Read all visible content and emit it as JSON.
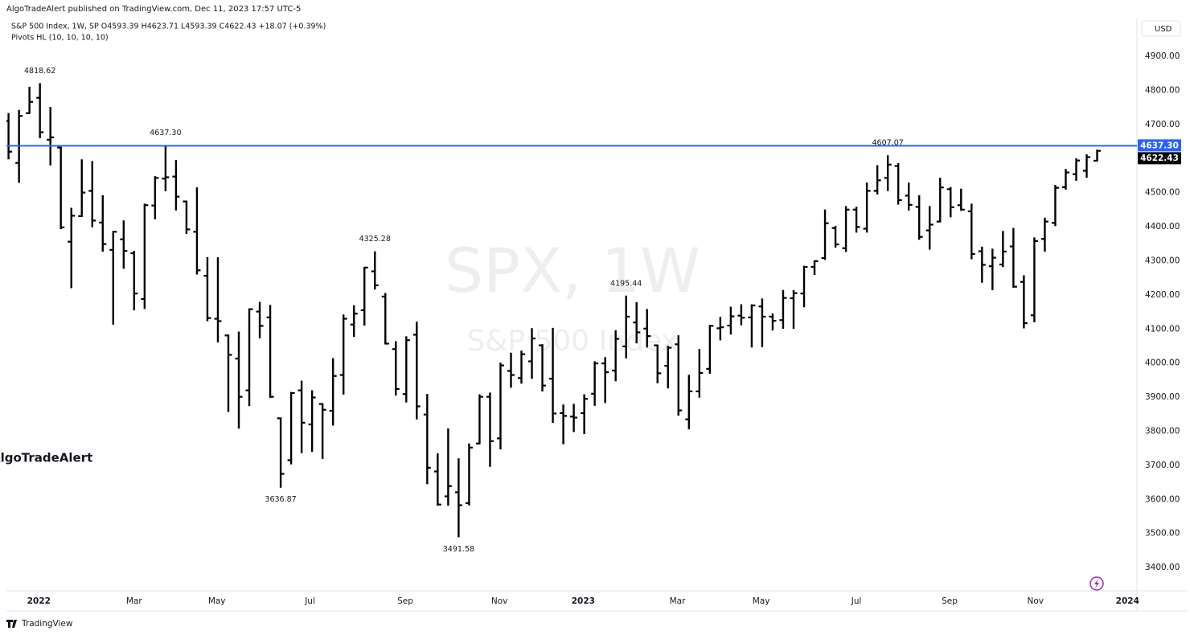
{
  "header": {
    "publisher": "AlgoTradeAlert published on TradingView.com, Dec 11, 2023 17:57 UTC-5",
    "legend": "S&P 500 Index, 1W, SP  O4593.39  H4623.71  L4593.39  C4622.43  +18.07 (+0.39%)",
    "indicator": "Pivots HL (10, 10, 10, 10)",
    "currency": "USD"
  },
  "watermark": {
    "symbol": "SPX, 1W",
    "name": "S&P 500 Index",
    "author": "AlgoTradeAlert"
  },
  "footer": "TradingView",
  "chart_data": {
    "type": "ohlc",
    "color": "#000000",
    "open": [
      4710,
      4587,
      4733,
      4778,
      4655,
      4632,
      4356,
      4431,
      4505,
      4412,
      4332,
      4363,
      4322,
      4188,
      4462,
      4541,
      4547,
      4474,
      4385,
      4256,
      4130,
      4081,
      4013,
      3920,
      4151,
      4134,
      3838,
      3715,
      3920,
      3820,
      3880,
      3860,
      3965,
      4113,
      4155,
      4269,
      4195,
      4041,
      3909,
      4083,
      3849,
      3682,
      3609,
      3621,
      3589,
      3764,
      3901,
      3779,
      3977,
      3956,
      4005,
      4052,
      3954,
      3853,
      3843,
      3853,
      3910,
      3999,
      3978,
      4049,
      4119,
      4101,
      4052,
      3992,
      4055,
      3835,
      3917,
      3983,
      4102,
      4110,
      4139,
      4134,
      4166,
      4136,
      4126,
      4190,
      4204,
      4282,
      4308,
      4396,
      4337,
      4450,
      4394,
      4505,
      4543,
      4578,
      4491,
      4458,
      4389,
      4415,
      4510,
      4463,
      4445,
      4328,
      4284,
      4289,
      4342,
      4238,
      4140,
      4364,
      4411,
      4516,
      4554,
      4564,
      4593.39
    ],
    "high": [
      4731,
      4740,
      4808,
      4818.62,
      4749,
      4632,
      4453,
      4595,
      4590,
      4490,
      4385,
      4416,
      4327,
      4465,
      4546,
      4637.3,
      4593,
      4474,
      4513,
      4308,
      4308,
      4081,
      4090,
      4158,
      4177,
      4168,
      3838,
      3913,
      3946,
      3918,
      3880,
      4012,
      4140,
      4167,
      4280,
      4325.28,
      4203,
      4062,
      4076,
      4119,
      3907,
      3733,
      3806,
      3718,
      3762,
      3906,
      3911,
      3999,
      4028,
      4034,
      4100,
      4053,
      4101,
      3876,
      3878,
      3906,
      4003,
      4015,
      4094,
      4195.44,
      4176,
      4156,
      4052,
      4048,
      4079,
      3963,
      4039,
      4110,
      4133,
      4163,
      4170,
      4170,
      4187,
      4143,
      4212,
      4212,
      4283,
      4299,
      4448,
      4400,
      4458,
      4456,
      4527,
      4578,
      4607.07,
      4584,
      4527,
      4490,
      4458,
      4541,
      4514,
      4509,
      4465,
      4339,
      4333,
      4385,
      4394,
      4255,
      4366,
      4424,
      4520,
      4567,
      4598,
      4610,
      4623.71
    ],
    "low": [
      4600,
      4531,
      4733,
      4662,
      4582,
      4395,
      4222,
      4431,
      4401,
      4329,
      4115,
      4279,
      4157,
      4161,
      4424,
      4506,
      4450,
      4381,
      4262,
      4125,
      4063,
      3859,
      3810,
      3876,
      4075,
      3900,
      3636.87,
      3705,
      3738,
      3742,
      3721,
      3819,
      3910,
      4079,
      4112,
      4218,
      4057,
      3907,
      3887,
      3837,
      3647,
      3584,
      3584,
      3491.58,
      3585,
      3764,
      3698,
      3749,
      3930,
      3942,
      3956,
      3919,
      3827,
      3764,
      3800,
      3794,
      3877,
      3885,
      3949,
      4016,
      4060,
      4048,
      3943,
      3928,
      3848,
      3808,
      3901,
      3971,
      4069,
      4086,
      4113,
      4048,
      4049,
      4098,
      4103,
      4103,
      4166,
      4261,
      4305,
      4341,
      4328,
      4385,
      4385,
      4497,
      4507,
      4467,
      4450,
      4364,
      4335,
      4415,
      4430,
      4449,
      4307,
      4238,
      4216,
      4284,
      4223,
      4104,
      4122,
      4329,
      4404,
      4511,
      4537,
      4546,
      4593.39
    ],
    "close": [
      4620,
      4725,
      4766,
      4677,
      4662,
      4398,
      4432,
      4500,
      4418,
      4349,
      4385,
      4329,
      4204,
      4463,
      4543,
      4545,
      4488,
      4392,
      4272,
      4132,
      4123,
      4024,
      3901,
      4158,
      4109,
      3901,
      3675,
      3912,
      3825,
      3899,
      3863,
      3962,
      4130,
      4145,
      4280,
      4228,
      4057,
      3924,
      4067,
      3873,
      3693,
      3585,
      3639,
      3583,
      3752,
      3901,
      3771,
      3993,
      3965,
      4026,
      4072,
      3934,
      3852,
      3845,
      3840,
      3895,
      3999,
      3973,
      4071,
      4136,
      4090,
      4079,
      3970,
      4045,
      3861,
      3917,
      3971,
      4109,
      4105,
      4137,
      4133,
      4169,
      4136,
      4124,
      4191,
      4205,
      4282,
      4299,
      4410,
      4348,
      4450,
      4399,
      4505,
      4536,
      4582,
      4478,
      4464,
      4370,
      4406,
      4515,
      4457,
      4450,
      4320,
      4288,
      4309,
      4327,
      4224,
      4117,
      4358,
      4415,
      4514,
      4559,
      4594,
      4604,
      4622.43
    ],
    "pivot_highs": [
      4818.62,
      {
        "value": 4637.3,
        "label": "4637.30"
      },
      4325.28,
      4195.44,
      4607.07
    ],
    "pivot_lows": [
      3636.87,
      3491.58
    ],
    "price_line": {
      "value": 4637.3,
      "label": "4637.30",
      "color": "#2962ff"
    },
    "xlim": [
      -0.2,
      107.8
    ],
    "xticks": [
      {
        "value": 2.9,
        "label": "2022"
      },
      {
        "value": 12,
        "label": "Mar"
      },
      {
        "value": 19.9,
        "label": "May"
      },
      {
        "value": 28.8,
        "label": "Jul"
      },
      {
        "value": 37.9,
        "label": "Sep"
      },
      {
        "value": 46.9,
        "label": "Nov"
      },
      {
        "value": 54.9,
        "label": "2023"
      },
      {
        "value": 63.9,
        "label": "Mar"
      },
      {
        "value": 71.9,
        "label": "May"
      },
      {
        "value": 81,
        "label": "Jul"
      },
      {
        "value": 89.9,
        "label": "Sep"
      },
      {
        "value": 98.1,
        "label": "Nov"
      },
      {
        "value": 106.9,
        "label": "2024"
      }
    ],
    "ylim": [
      3332,
      5013
    ],
    "yticks": [
      {
        "value": 3400,
        "label": "3400.00"
      },
      {
        "value": 3500,
        "label": "3500.00"
      },
      {
        "value": 3600,
        "label": "3600.00"
      },
      {
        "value": 3700,
        "label": "3700.00"
      },
      {
        "value": 3800,
        "label": "3800.00"
      },
      {
        "value": 3900,
        "label": "3900.00"
      },
      {
        "value": 4000,
        "label": "4000.00"
      },
      {
        "value": 4100,
        "label": "4100.00"
      },
      {
        "value": 4200,
        "label": "4200.00"
      },
      {
        "value": 4300,
        "label": "4300.00"
      },
      {
        "value": 4400,
        "label": "4400.00"
      },
      {
        "value": 4500,
        "label": "4500.00"
      },
      {
        "value": 4600,
        "label": "4600.00"
      },
      {
        "value": 4700,
        "label": "4700.00"
      },
      {
        "value": 4800,
        "label": "4800.00"
      },
      {
        "value": 4900,
        "label": "4900.00"
      }
    ],
    "grid": false
  }
}
